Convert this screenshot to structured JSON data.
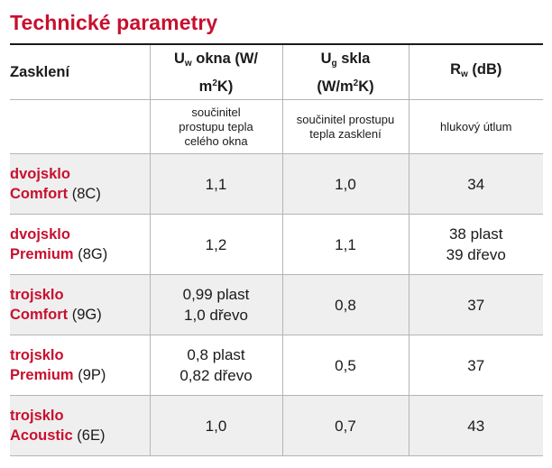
{
  "title": "Technické parametry",
  "header": {
    "col1": "Zasklení",
    "col2": {
      "sym": "U",
      "sub": "w",
      "rest": " okna (W/",
      "unit2": "m",
      "sup": "2",
      "unit3": "K)"
    },
    "col3": {
      "sym": "U",
      "sub": "g",
      "rest": " skla",
      "unit1": "(W/m",
      "sup": "2",
      "unit2": "K)"
    },
    "col4": {
      "sym": "R",
      "sub": "w",
      "rest": " (dB)"
    }
  },
  "subheader": {
    "col2": [
      "součinitel",
      "prostupu tepla",
      "celého okna"
    ],
    "col3": [
      "součinitel prostupu",
      "tepla zasklení"
    ],
    "col4": [
      "hlukový útlum"
    ]
  },
  "rows": [
    {
      "name1": "dvojsklo",
      "name2": "Comfort",
      "code": "(8C)",
      "uw": [
        "1,1"
      ],
      "ug": "1,0",
      "rw": [
        "34"
      ]
    },
    {
      "name1": "dvojsklo",
      "name2": "Premium",
      "code": "(8G)",
      "uw": [
        "1,2"
      ],
      "ug": "1,1",
      "rw": [
        "38 plast",
        "39 dřevo"
      ]
    },
    {
      "name1": "trojsklo",
      "name2": "Comfort",
      "code": "(9G)",
      "uw": [
        "0,99 plast",
        "1,0 dřevo"
      ],
      "ug": "0,8",
      "rw": [
        "37"
      ]
    },
    {
      "name1": "trojsklo",
      "name2": "Premium",
      "code": "(9P)",
      "uw": [
        "0,8 plast",
        "0,82 dřevo"
      ],
      "ug": "0,5",
      "rw": [
        "37"
      ]
    },
    {
      "name1": "trojsklo",
      "name2": "Acoustic",
      "code": "(6E)",
      "uw": [
        "1,0"
      ],
      "ug": "0,7",
      "rw": [
        "43"
      ]
    }
  ]
}
